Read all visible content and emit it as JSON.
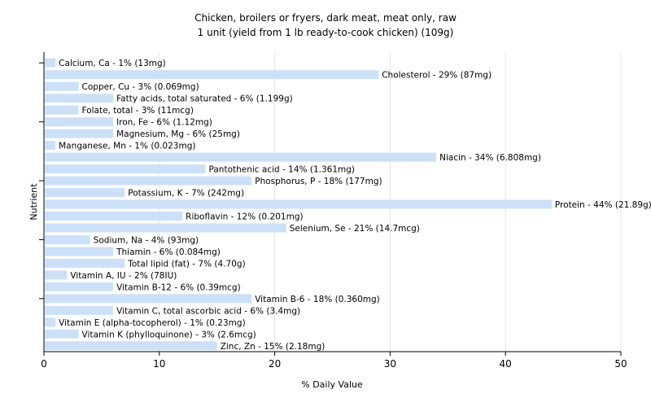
{
  "chart_data": {
    "type": "bar",
    "orientation": "horizontal",
    "title": "Chicken, broilers or fryers, dark meat, meat only, raw",
    "subtitle": "1 unit (yield from 1 lb ready-to-cook chicken) (109g)",
    "xlabel": "% Daily Value",
    "ylabel": "Nutrient",
    "xlim": [
      0,
      50
    ],
    "xticks": [
      0,
      10,
      20,
      30,
      40,
      50
    ],
    "grid": true,
    "colors": {
      "bar": "#cce0f8",
      "grid": "#e4e4e4",
      "axis": "#000000"
    },
    "categories": [
      "Calcium, Ca",
      "Cholesterol",
      "Copper, Cu",
      "Fatty acids, total saturated",
      "Folate, total",
      "Iron, Fe",
      "Magnesium, Mg",
      "Manganese, Mn",
      "Niacin",
      "Pantothenic acid",
      "Phosphorus, P",
      "Potassium, K",
      "Protein",
      "Riboflavin",
      "Selenium, Se",
      "Sodium, Na",
      "Thiamin",
      "Total lipid (fat)",
      "Vitamin A, IU",
      "Vitamin B-12",
      "Vitamin B-6",
      "Vitamin C, total ascorbic acid",
      "Vitamin E (alpha-tocopherol)",
      "Vitamin K (phylloquinone)",
      "Zinc, Zn"
    ],
    "values": [
      1,
      29,
      3,
      6,
      3,
      6,
      6,
      1,
      34,
      14,
      18,
      7,
      44,
      12,
      21,
      4,
      6,
      7,
      2,
      6,
      18,
      6,
      1,
      3,
      15
    ],
    "labels": [
      "Calcium, Ca - 1% (13mg)",
      "Cholesterol - 29% (87mg)",
      "Copper, Cu - 3% (0.069mg)",
      "Fatty acids, total saturated - 6% (1.199g)",
      "Folate, total - 3% (11mcg)",
      "Iron, Fe - 6% (1.12mg)",
      "Magnesium, Mg - 6% (25mg)",
      "Manganese, Mn - 1% (0.023mg)",
      "Niacin - 34% (6.808mg)",
      "Pantothenic acid - 14% (1.361mg)",
      "Phosphorus, P - 18% (177mg)",
      "Potassium, K - 7% (242mg)",
      "Protein - 44% (21.89g)",
      "Riboflavin - 12% (0.201mg)",
      "Selenium, Se - 21% (14.7mcg)",
      "Sodium, Na - 4% (93mg)",
      "Thiamin - 6% (0.084mg)",
      "Total lipid (fat) - 7% (4.70g)",
      "Vitamin A, IU - 2% (78IU)",
      "Vitamin B-12 - 6% (0.39mcg)",
      "Vitamin B-6 - 18% (0.360mg)",
      "Vitamin C, total ascorbic acid - 6% (3.4mg)",
      "Vitamin E (alpha-tocopherol) - 1% (0.23mg)",
      "Vitamin K (phylloquinone) - 3% (2.6mcg)",
      "Zinc, Zn - 15% (2.18mg)"
    ]
  }
}
